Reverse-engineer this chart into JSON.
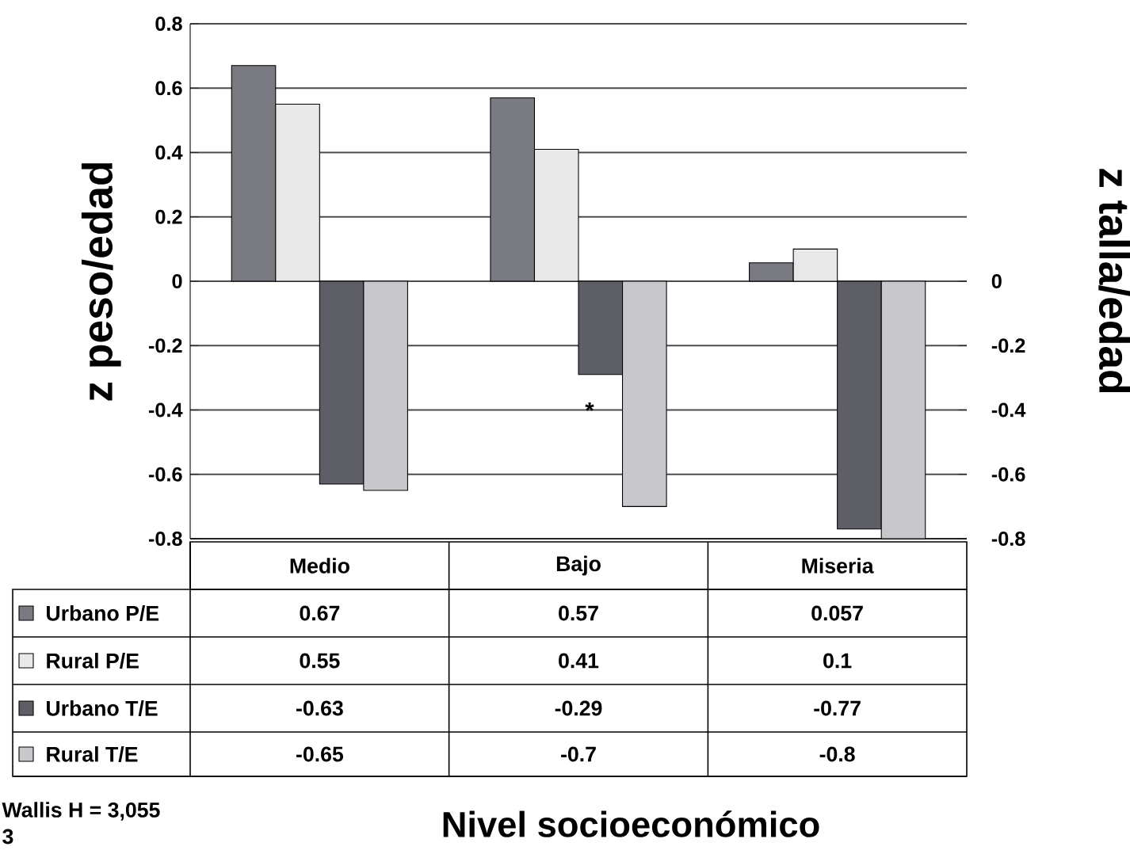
{
  "chart_data": {
    "type": "bar",
    "categories": [
      "Medio",
      "Bajo",
      "Miseria"
    ],
    "series": [
      {
        "name": "Urbano P/E",
        "color": "#7a7a82",
        "values": [
          0.67,
          0.57,
          0.057
        ]
      },
      {
        "name": "Rural P/E",
        "color": "#e8e8e8",
        "values": [
          0.55,
          0.41,
          0.1
        ]
      },
      {
        "name": "Urbano T/E",
        "color": "#5e5e66",
        "axis": "y2",
        "values": [
          -0.63,
          -0.29,
          -0.77
        ]
      },
      {
        "name": "Rural T/E",
        "color": "#c8c8cc",
        "axis": "y2",
        "values": [
          -0.65,
          -0.7,
          -0.8
        ]
      }
    ],
    "ylabel": "z peso/edad",
    "y2label": "z talla/edad",
    "ylim": [
      -0.8,
      0.8
    ],
    "yticks": [
      0.8,
      0.6,
      0.4,
      0.2,
      0,
      -0.2,
      -0.4,
      -0.6,
      -0.8
    ],
    "y2lim": [
      -0.8,
      0.8
    ],
    "y2ticks": [
      0,
      -0.2,
      -0.4,
      -0.6,
      -0.8
    ],
    "grid": "y",
    "legend": "bottom",
    "data_labels": true,
    "tick_labels": "y",
    "annotations": [
      "*",
      "Nivel socioeconómico",
      "Wallis H = 3,055",
      "3"
    ]
  }
}
